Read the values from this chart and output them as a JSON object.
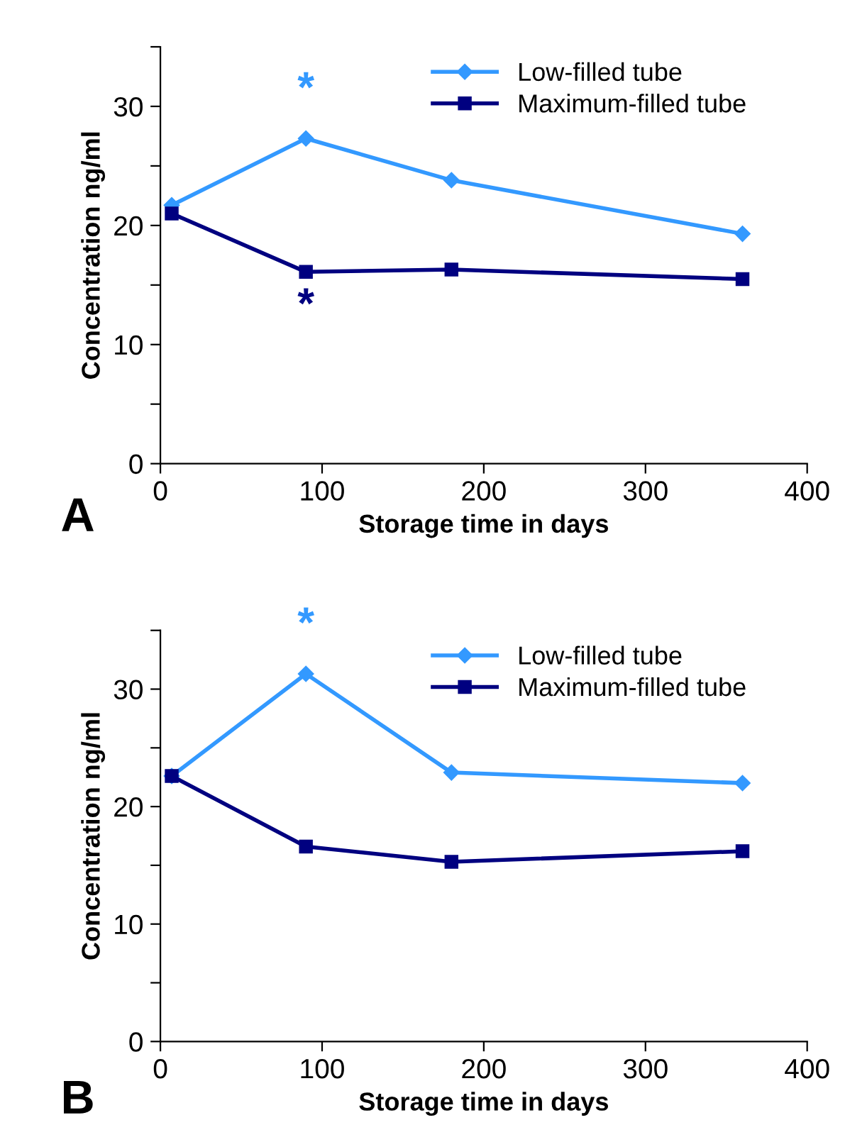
{
  "chart_data": [
    {
      "type": "line",
      "xlabel": "Storage time in days",
      "ylabel": "Concentration ng/ml",
      "xlim": [
        0,
        400
      ],
      "ylim": [
        0,
        35
      ],
      "xticks": [
        0,
        100,
        200,
        300,
        400
      ],
      "yticks": [
        0,
        {
          "value": 5,
          "label": null
        },
        10,
        {
          "value": 15,
          "label": null
        },
        20,
        {
          "value": 25,
          "label": null
        },
        30,
        {
          "value": 35,
          "label": null
        }
      ],
      "grid": false,
      "legend": "top right",
      "line_style": "solid",
      "series": [
        {
          "name": "Low-filled tube",
          "color": "#3399ff",
          "marker": "diamond",
          "x": [
            7,
            90,
            180,
            360
          ],
          "values": [
            21.7,
            27.3,
            23.8,
            19.3
          ]
        },
        {
          "name": "Maximum-filled tube",
          "color": "#000080",
          "marker": "square",
          "x": [
            7,
            90,
            180,
            360
          ],
          "values": [
            21.0,
            16.1,
            16.3,
            15.5
          ]
        }
      ],
      "annotations": [
        "*",
        "*",
        "A"
      ]
    },
    {
      "type": "line",
      "xlabel": "Storage time in days",
      "ylabel": "Concentration ng/ml",
      "xlim": [
        0,
        400
      ],
      "ylim": [
        0,
        35
      ],
      "xticks": [
        0,
        100,
        200,
        300,
        400
      ],
      "yticks": [
        0,
        {
          "value": 5,
          "label": null
        },
        10,
        {
          "value": 15,
          "label": null
        },
        20,
        {
          "value": 25,
          "label": null
        },
        30,
        {
          "value": 35,
          "label": null
        }
      ],
      "grid": false,
      "legend": "top right",
      "line_style": "solid",
      "series": [
        {
          "name": "Low-filled tube",
          "color": "#3399ff",
          "marker": "diamond",
          "x": [
            7,
            90,
            180,
            360
          ],
          "values": [
            22.6,
            31.3,
            22.9,
            22.0
          ]
        },
        {
          "name": "Maximum-filled tube",
          "color": "#000080",
          "marker": "square",
          "x": [
            7,
            90,
            180,
            360
          ],
          "values": [
            22.6,
            16.6,
            15.3,
            16.2
          ]
        }
      ],
      "annotations": [
        "*",
        "B"
      ]
    }
  ]
}
